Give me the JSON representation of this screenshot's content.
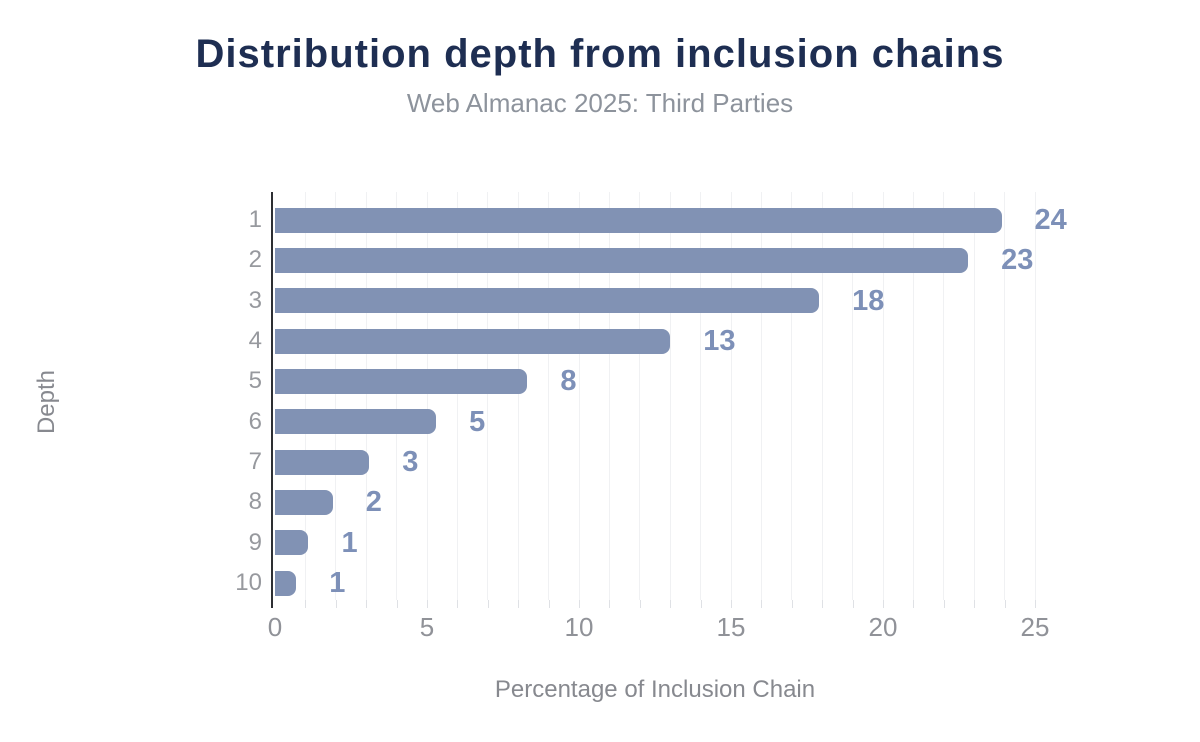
{
  "title": "Distribution depth from inclusion chains",
  "subtitle": "Web Almanac 2025: Third Parties",
  "chart_data": {
    "type": "bar",
    "orientation": "horizontal",
    "title": "Distribution depth from inclusion chains",
    "subtitle": "Web Almanac 2025: Third Parties",
    "xlabel": "Percentage of Inclusion Chain",
    "ylabel": "Depth",
    "categories": [
      "1",
      "2",
      "3",
      "4",
      "5",
      "6",
      "7",
      "8",
      "9",
      "10"
    ],
    "values": [
      24,
      23,
      18,
      13,
      8,
      5,
      3,
      2,
      1,
      1
    ],
    "bar_lengths": [
      23.9,
      22.8,
      17.9,
      13.0,
      8.3,
      5.3,
      3.1,
      1.9,
      1.1,
      0.7
    ],
    "x_ticks": [
      0,
      5,
      10,
      15,
      20,
      25
    ],
    "xlim": [
      0,
      25
    ],
    "grid": "vertical gridlines every 1 unit",
    "legend": "none"
  },
  "colors": {
    "title": "#1e2e52",
    "subtitle": "#8d939c",
    "bar": "#8192b4",
    "value_label": "#7d90b8",
    "category_label": "#97999e",
    "tick_label": "#909298",
    "axis_title": "#87898f",
    "axis_line": "#2d2f33",
    "gridline": "#f0f1f3",
    "background": "#ffffff"
  }
}
